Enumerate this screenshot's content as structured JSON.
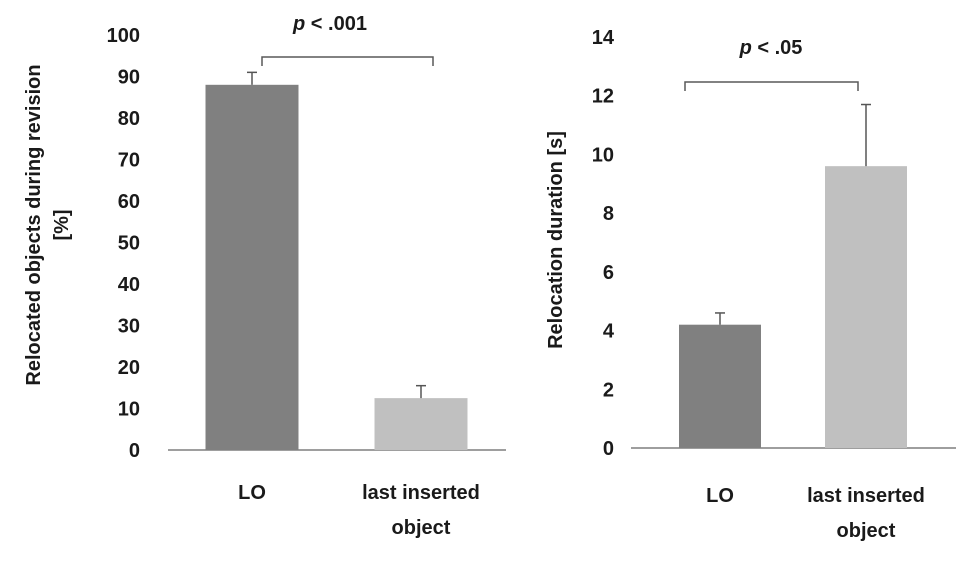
{
  "colors": {
    "dark_bar": "#808080",
    "light_bar": "#c0c0c0",
    "axis": "#7f7f7f",
    "error_bar": "#555555",
    "bracket": "#595959"
  },
  "chart_data": [
    {
      "type": "bar",
      "categories": [
        {
          "line1": "LO",
          "line2": ""
        },
        {
          "line1": "last inserted",
          "line2": "object"
        }
      ],
      "values": [
        88,
        12.5
      ],
      "errors": [
        3,
        3
      ],
      "ylabel_line1": "Relocated objects during revision",
      "ylabel_line2": "[%]",
      "ylim": [
        0,
        100
      ],
      "yticks": [
        "0",
        "10",
        "20",
        "30",
        "40",
        "50",
        "60",
        "70",
        "80",
        "90",
        "100"
      ],
      "significance": {
        "p_label": "p",
        "rest": " < .001",
        "between": [
          0,
          1
        ]
      }
    },
    {
      "type": "bar",
      "categories": [
        {
          "line1": "LO",
          "line2": ""
        },
        {
          "line1": "last inserted",
          "line2": "object"
        }
      ],
      "values": [
        4.2,
        9.6
      ],
      "errors": [
        0.4,
        2.1
      ],
      "ylabel_line1": "Relocation duration [s]",
      "ylabel_line2": "",
      "ylim": [
        0,
        14
      ],
      "yticks": [
        "0",
        "2",
        "4",
        "6",
        "8",
        "10",
        "12",
        "14"
      ],
      "significance": {
        "p_label": "p",
        "rest": " < .05",
        "between": [
          0,
          1
        ]
      }
    }
  ]
}
